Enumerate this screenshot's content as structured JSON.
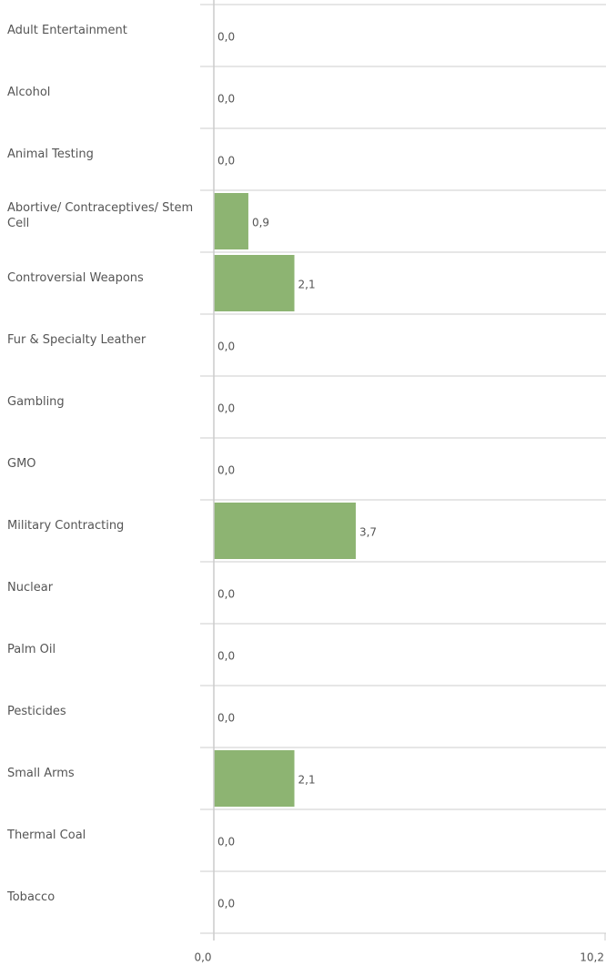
{
  "chart_data": {
    "type": "bar",
    "orientation": "horizontal",
    "categories": [
      "Adult Entertainment",
      "Alcohol",
      "Animal Testing",
      "Abortive/ Contraceptives/ Stem Cell",
      "Controversial Weapons",
      "Fur & Specialty Leather",
      "Gambling",
      "GMO",
      "Military Contracting",
      "Nuclear",
      "Palm Oil",
      "Pesticides",
      "Small Arms",
      "Thermal Coal",
      "Tobacco"
    ],
    "values": [
      0,
      0,
      0,
      0.9,
      2.1,
      0,
      0,
      0,
      3.7,
      0,
      0,
      0,
      2.1,
      0,
      0
    ],
    "value_labels": [
      "0,0",
      "0,0",
      "0,0",
      "0,9",
      "2,1",
      "0,0",
      "0,0",
      "0,0",
      "3,7",
      "0,0",
      "0,0",
      "0,0",
      "2,1",
      "0,0",
      "0,0"
    ],
    "color": "#8db472",
    "xlim": [
      0,
      10.2
    ],
    "xticks": [
      {
        "value": 0,
        "label": "0,0"
      },
      {
        "value": 10.2,
        "label": "10,2"
      }
    ]
  }
}
